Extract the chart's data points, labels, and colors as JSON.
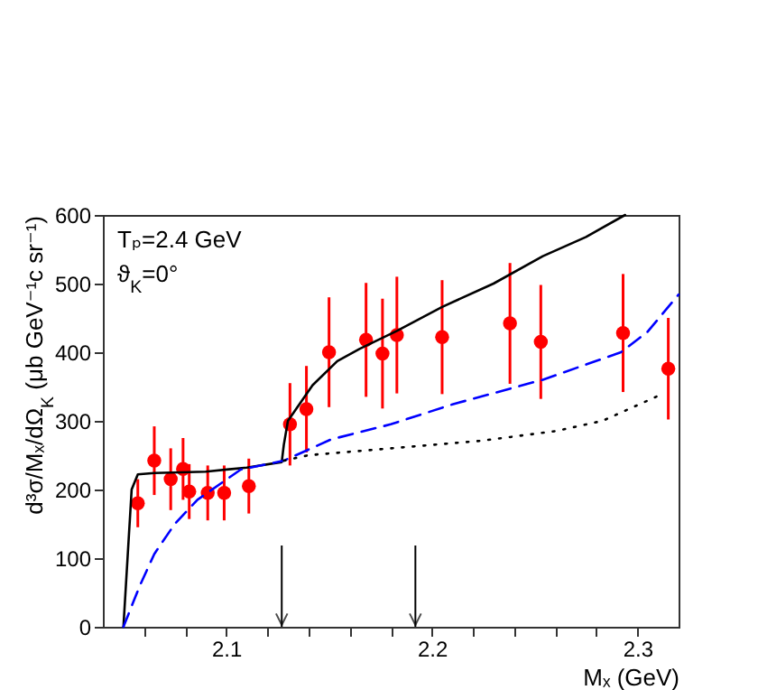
{
  "chart_data": {
    "type": "scatter",
    "xlabel": "Mₓ (GeV)",
    "ylabel": "d³σ/Mₓ/dΩ$_{K}$ (μb GeV⁻¹c sr⁻¹)",
    "annotations": [
      "Tₚ=2.4 GeV",
      "ϑ$_{K}$=0°"
    ],
    "xlim": [
      2.04,
      2.32
    ],
    "ylim": [
      0,
      600
    ],
    "xticks": [
      {
        "value": 2.06,
        "label": null
      },
      {
        "value": 2.08,
        "label": null
      },
      2.1,
      {
        "value": 2.12,
        "label": null
      },
      {
        "value": 2.14,
        "label": null
      },
      {
        "value": 2.16,
        "label": null
      },
      {
        "value": 2.18,
        "label": null
      },
      2.2,
      {
        "value": 2.22,
        "label": null
      },
      {
        "value": 2.24,
        "label": null
      },
      {
        "value": 2.26,
        "label": null
      },
      {
        "value": 2.28,
        "label": null
      },
      2.3
    ],
    "yticks": [
      0,
      100,
      200,
      300,
      400,
      500,
      600
    ],
    "grid": false,
    "ref_lines": [
      {
        "axis": "x",
        "value": 2.127
      },
      {
        "axis": "x",
        "value": 2.192
      }
    ],
    "series": [
      {
        "type": "scatter",
        "color": "#ff0000",
        "marker": "circle",
        "x": [
          2.057,
          2.065,
          2.073,
          2.079,
          2.082,
          2.091,
          2.099,
          2.111,
          2.131,
          2.139,
          2.15,
          2.168,
          2.176,
          2.183,
          2.205,
          2.238,
          2.253,
          2.293,
          2.315
        ],
        "values": [
          180,
          242,
          215,
          230,
          197,
          195,
          195,
          205,
          295,
          317,
          400,
          418,
          398,
          425,
          422,
          442,
          415,
          428,
          376
        ],
        "errors": [
          35,
          50,
          45,
          45,
          40,
          40,
          40,
          40,
          60,
          63,
          80,
          83,
          80,
          85,
          83,
          88,
          83,
          86,
          74
        ]
      },
      {
        "type": "line",
        "color": "#000000",
        "line_style": "solid",
        "marker": "none",
        "x": [
          2.05,
          2.052,
          2.054,
          2.057,
          2.065,
          2.09,
          2.11,
          2.127,
          2.128,
          2.13,
          2.142,
          2.154,
          2.165,
          2.183,
          2.205,
          2.23,
          2.254,
          2.275,
          2.294
        ],
        "values": [
          0,
          100,
          200,
          222,
          224,
          226,
          232,
          240,
          265,
          300,
          352,
          387,
          405,
          431,
          466,
          500,
          540,
          568,
          600
        ]
      },
      {
        "type": "line",
        "color": "#0000ff",
        "line_style": "dashed",
        "marker": "none",
        "x": [
          2.05,
          2.058,
          2.065,
          2.075,
          2.086,
          2.107,
          2.128,
          2.151,
          2.18,
          2.21,
          2.254,
          2.292,
          2.305,
          2.32
        ],
        "values": [
          0,
          60,
          106,
          150,
          185,
          229,
          242,
          273,
          295,
          324,
          360,
          400,
          430,
          484
        ]
      },
      {
        "type": "line",
        "color": "#000000",
        "line_style": "dotted",
        "marker": "none",
        "x": [
          2.128,
          2.14,
          2.18,
          2.224,
          2.26,
          2.283,
          2.312
        ],
        "values": [
          242,
          250,
          260,
          271,
          285,
          300,
          339
        ]
      }
    ]
  }
}
